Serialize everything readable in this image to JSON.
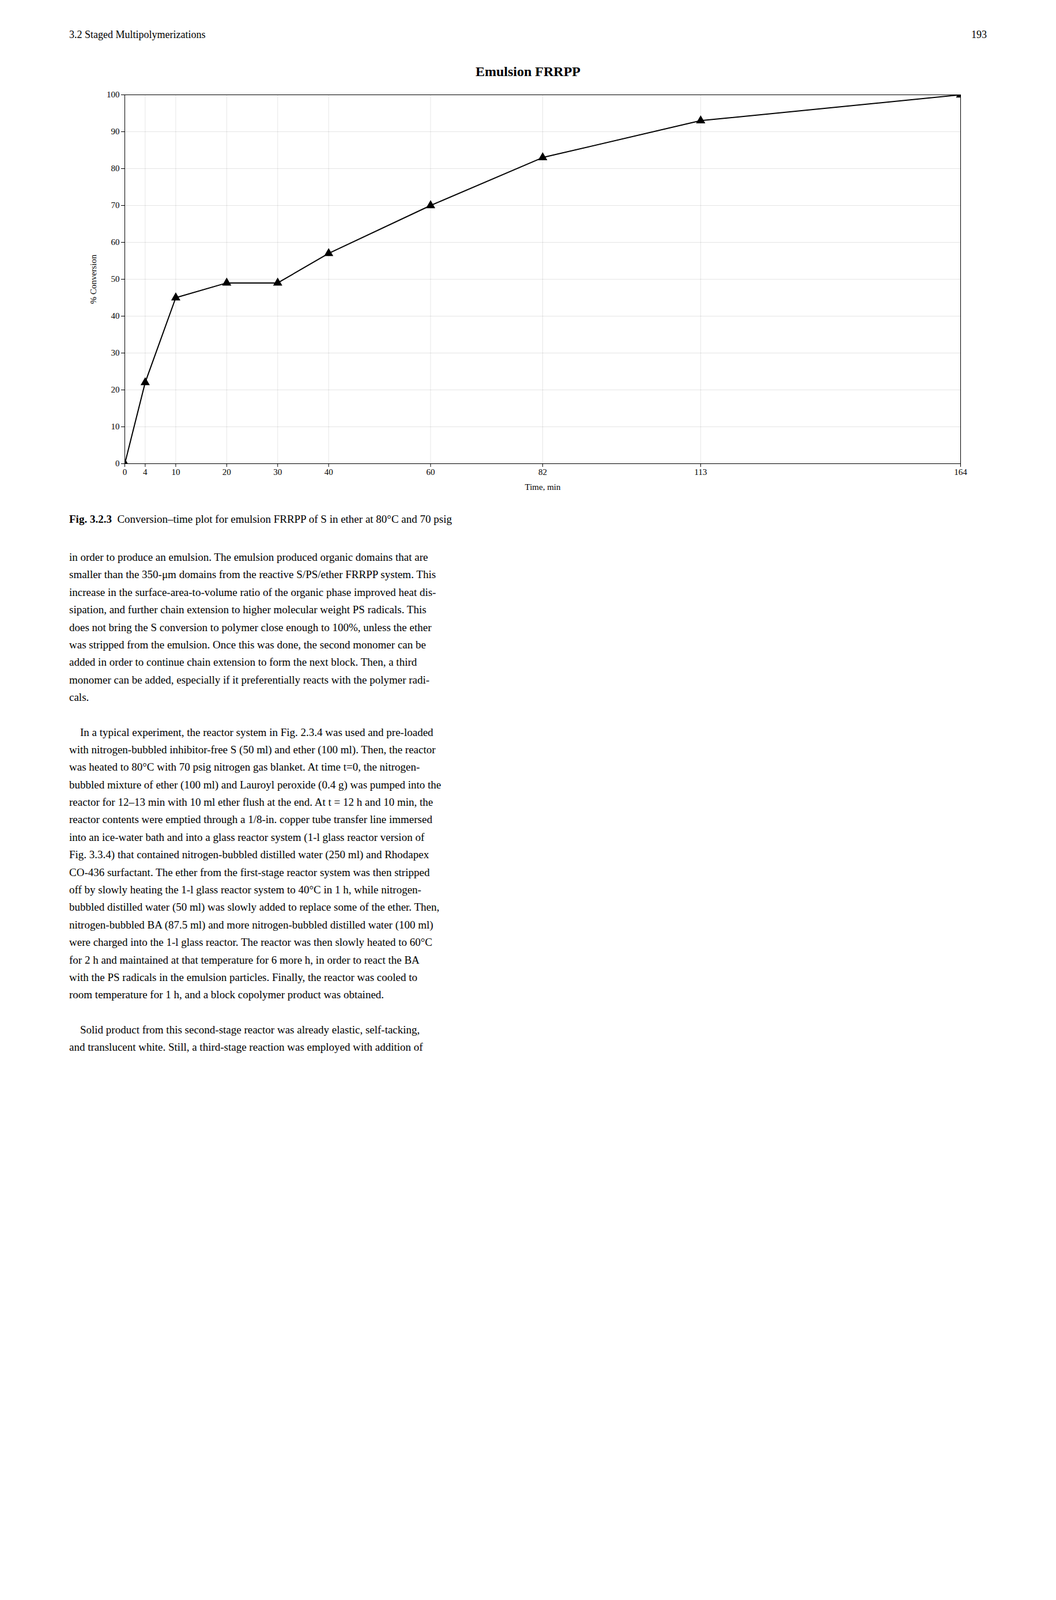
{
  "chart_data": {
    "type": "line",
    "title": "Emulsion FRRPP",
    "x_label": "Time, min",
    "y_label": "% Conversion",
    "x": [
      0,
      4,
      10,
      20,
      30,
      40,
      60,
      82,
      113,
      164
    ],
    "values": [
      0,
      22,
      45,
      49,
      49,
      57,
      70,
      83,
      93,
      100
    ],
    "xlim": [
      0,
      164
    ],
    "ylim": [
      0,
      100
    ],
    "xticks": [
      0,
      4,
      10,
      20,
      30,
      40,
      60,
      82,
      113,
      164
    ],
    "yticks": [
      0,
      10,
      20,
      30,
      40,
      50,
      60,
      70,
      80,
      90,
      100
    ],
    "grid": true,
    "color": "#000000",
    "marker": "triangle",
    "annotations": [
      "3.2   Staged Multipolymerizations",
      "193",
      "Fig. 3.2.3",
      "  Conversion–time plot for emulsion FRRPP of S in ether at 80°C and 70 psig",
      "in order to produce an emulsion. The emulsion produced organic domains that are\nsmaller than the 350-μm domains from the reactive S/PS/ether FRRPP system. This\nincrease in the surface-area-to-volume ratio of the organic phase improved heat dis-\nsipation, and further chain extension to higher molecular weight PS radicals. This\ndoes not bring the S conversion to polymer close enough to 100%, unless the ether\nwas stripped from the emulsion. Once this was done, the second monomer can be\nadded in order to continue chain extension to form the next block. Then, a third\nmonomer can be added, especially if it preferentially reacts with the polymer radi-\ncals.",
      "    In a typical experiment, the reactor system in Fig. 2.3.4 was used and pre-loaded\nwith nitrogen-bubbled inhibitor-free S (50 ml) and ether (100 ml). Then, the reactor\nwas heated to 80°C with 70 psig nitrogen gas blanket. At time t=0, the nitrogen-\nbubbled mixture of ether (100 ml) and Lauroyl peroxide (0.4 g) was pumped into the\nreactor for 12–13 min with 10 ml ether flush at the end. At t = 12 h and 10 min, the\nreactor contents were emptied through a 1/8-in. copper tube transfer line immersed\ninto an ice-water bath and into a glass reactor system (1-l glass reactor version of\nFig. 3.3.4) that contained nitrogen-bubbled distilled water (250 ml) and Rhodapex\nCO-436 surfactant. The ether from the first-stage reactor system was then stripped\noff by slowly heating the 1-l glass reactor system to 40°C in 1 h, while nitrogen-\nbubbled distilled water (50 ml) was slowly added to replace some of the ether. Then,\nnitrogen-bubbled BA (87.5 ml) and more nitrogen-bubbled distilled water (100 ml)\nwere charged into the 1-l glass reactor. The reactor was then slowly heated to 60°C\nfor 2 h and maintained at that temperature for 6 more h, in order to react the BA\nwith the PS radicals in the emulsion particles. Finally, the reactor was cooled to\nroom temperature for 1 h, and a block copolymer product was obtained.",
      "    Solid product from this second-stage reactor was already elastic, self-tacking,\nand translucent white. Still, a third-stage reaction was employed with addition of"
    ]
  }
}
